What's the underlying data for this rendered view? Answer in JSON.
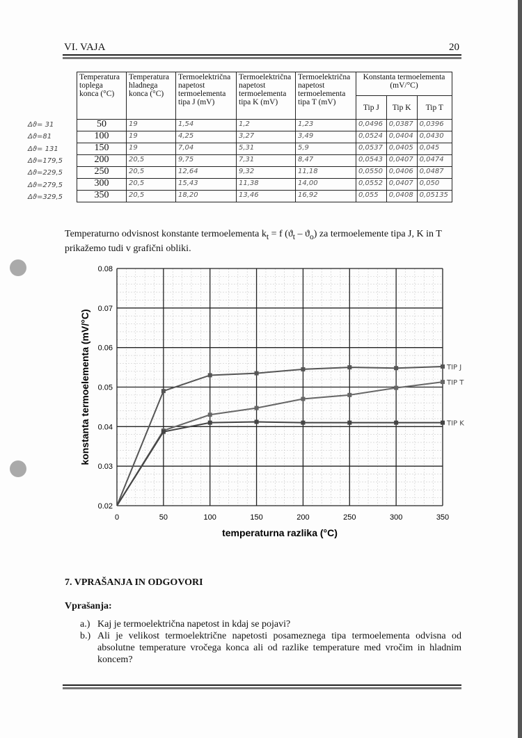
{
  "header": {
    "chapter": "VI. VAJA",
    "page_number": "20"
  },
  "table": {
    "headers": [
      "Temperatura toplega konca (°C)",
      "Temperatura hladnega konca (°C)",
      "Termoelektrična napetost termoelementa tipa J (mV)",
      "Termoelektrična napetost termoelementa tipa K (mV)",
      "Termoelektrična napetost termoelementa tipa T (mV)"
    ],
    "group_header": "Konstanta termoelementa (mV/°C)",
    "sub_headers": [
      "Tip J",
      "Tip K",
      "Tip T"
    ],
    "rows": [
      [
        "50",
        "19",
        "1,54",
        "1,2",
        "1,23",
        "0,0496",
        "0,0387",
        "0,0396"
      ],
      [
        "100",
        "19",
        "4,25",
        "3,27",
        "3,49",
        "0,0524",
        "0,0404",
        "0,0430"
      ],
      [
        "150",
        "19",
        "7,04",
        "5,31",
        "5,9",
        "0,0537",
        "0,0405",
        "0,045"
      ],
      [
        "200",
        "20,5",
        "9,75",
        "7,31",
        "8,47",
        "0,0543",
        "0,0407",
        "0,0474"
      ],
      [
        "250",
        "20,5",
        "12,64",
        "9,32",
        "11,18",
        "0,0550",
        "0,0406",
        "0,0487"
      ],
      [
        "300",
        "20,5",
        "15,43",
        "11,38",
        "14,00",
        "0,0552",
        "0,0407",
        "0,050"
      ],
      [
        "350",
        "20,5",
        "18,20",
        "13,46",
        "16,92",
        "0,055",
        "0,0408",
        "0,05135"
      ]
    ],
    "margin_notes": [
      "Δϑ= 31",
      "Δϑ=81",
      "Δϑ= 131",
      "Δϑ=179,5",
      "Δϑ=229,5",
      "Δϑ=279,5",
      "Δϑ=329,5"
    ]
  },
  "intro_text": {
    "line1": "Temperaturno odvisnost konstante termoelementa k",
    "sub_t": "t",
    "line1b": " = f (ϑ",
    "sub_t2": "t",
    "line1c": " – ϑ",
    "sub_o": "o",
    "line1d": ") za termoelemente tipa J, K in T",
    "line2": "prikažemo tudi v grafični obliki."
  },
  "chart_data": {
    "type": "line",
    "xlabel": "temperaturna razlika (°C)",
    "ylabel": "konstanta termoelementa (mV/°C)",
    "xlim": [
      0,
      350
    ],
    "ylim": [
      0.02,
      0.08
    ],
    "x_ticks": [
      "0",
      "50",
      "100",
      "150",
      "200",
      "250",
      "300",
      "350"
    ],
    "y_ticks": [
      "0.02",
      "0.03",
      "0.04",
      "0.05",
      "0.06",
      "0.07",
      "0.08"
    ],
    "grid": true,
    "x": [
      0,
      50,
      100,
      150,
      200,
      250,
      300,
      350
    ],
    "series": [
      {
        "name": "TIP J",
        "values": [
          0.02,
          0.049,
          0.053,
          0.0535,
          0.0545,
          0.055,
          0.0548,
          0.0552
        ],
        "color": "#555555"
      },
      {
        "name": "TIP T",
        "values": [
          0.02,
          0.039,
          0.043,
          0.0447,
          0.047,
          0.048,
          0.0498,
          0.0513
        ],
        "color": "#666666"
      },
      {
        "name": "TIP K",
        "values": [
          0.02,
          0.0387,
          0.041,
          0.0412,
          0.041,
          0.041,
          0.041,
          0.041
        ],
        "color": "#444444"
      }
    ]
  },
  "section": {
    "title": "7. VPRAŠANJA IN ODGOVORI",
    "subtitle": "Vprašanja:",
    "questions": [
      {
        "label": "a.)",
        "text": "Kaj je termoelektrična napetost in kdaj se pojavi?"
      },
      {
        "label": "b.)",
        "text": "Ali je velikost termoelektrične napetosti posameznega tipa termoelementa odvisna od absolutne temperature vročega konca ali od razlike temperature med vročim in hladnim koncem?"
      }
    ]
  }
}
